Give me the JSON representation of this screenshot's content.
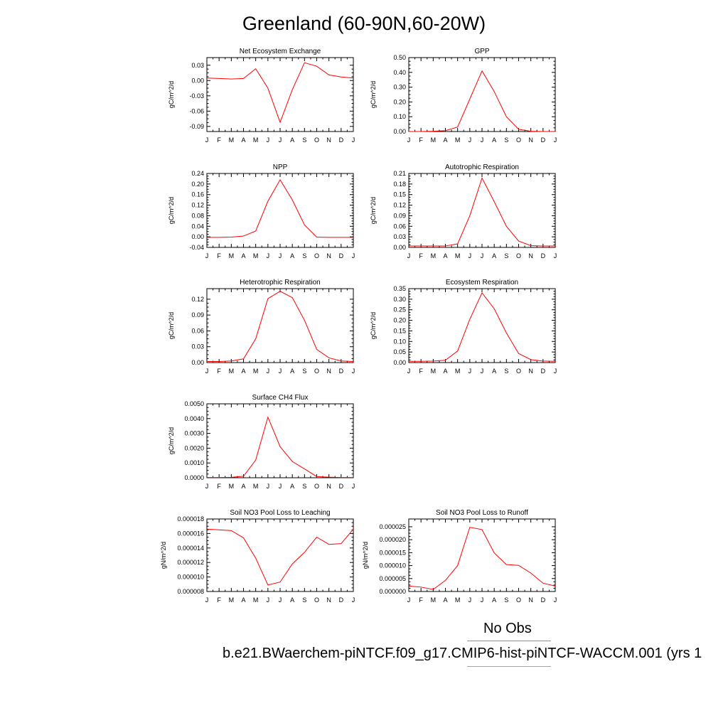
{
  "page": {
    "title": "Greenland (60-90N,60-20W)",
    "legend_obs_label": "No Obs",
    "legend_model_label": "b.e21.BWaerchem-piNTCF.f09_g17.CMIP6-hist-piNTCF-WACCM.001 (yrs 1",
    "colors": {
      "model": "#ff0000",
      "obs_line": "#8080ff",
      "model_line": "#ff8080"
    }
  },
  "chart_data": [
    {
      "type": "line",
      "title": "Net Ecosystem Exchange",
      "ylabel": "gC/m^2/d",
      "categories": [
        "J",
        "F",
        "M",
        "A",
        "M",
        "J",
        "J",
        "A",
        "S",
        "O",
        "N",
        "D",
        "J"
      ],
      "ylim": [
        -0.1,
        0.045
      ],
      "yticks": [
        0.03,
        0.0,
        -0.03,
        -0.06,
        -0.09
      ],
      "ytick_labels": [
        "0.03",
        "0.00",
        "-0.03",
        "-0.06",
        "-0.09"
      ],
      "values": [
        0.005,
        0.004,
        0.003,
        0.004,
        0.023,
        -0.015,
        -0.082,
        -0.018,
        0.035,
        0.028,
        0.011,
        0.007,
        0.005
      ]
    },
    {
      "type": "line",
      "title": "GPP",
      "ylabel": "gC/m^2/d",
      "categories": [
        "J",
        "F",
        "M",
        "A",
        "M",
        "J",
        "J",
        "A",
        "S",
        "O",
        "N",
        "D",
        "J"
      ],
      "ylim": [
        0,
        0.5
      ],
      "yticks": [
        0.0,
        0.1,
        0.2,
        0.3,
        0.4,
        0.5
      ],
      "ytick_labels": [
        "0.00",
        "0.10",
        "0.20",
        "0.30",
        "0.40",
        "0.50"
      ],
      "values": [
        0.0,
        0.0,
        0.002,
        0.006,
        0.03,
        0.22,
        0.41,
        0.27,
        0.1,
        0.015,
        0.002,
        0.0,
        0.0
      ]
    },
    {
      "type": "line",
      "title": "NPP",
      "ylabel": "gC/m^2/d",
      "categories": [
        "J",
        "F",
        "M",
        "A",
        "M",
        "J",
        "J",
        "A",
        "S",
        "O",
        "N",
        "D",
        "J"
      ],
      "ylim": [
        -0.04,
        0.24
      ],
      "yticks": [
        0.24,
        0.2,
        0.16,
        0.12,
        0.08,
        0.04,
        0.0,
        -0.04
      ],
      "ytick_labels": [
        "0.24",
        "0.20",
        "0.16",
        "0.12",
        "0.08",
        "0.04",
        "0.00",
        "-0.04"
      ],
      "values": [
        -0.002,
        -0.002,
        -0.001,
        0.003,
        0.022,
        0.135,
        0.216,
        0.14,
        0.045,
        -0.001,
        -0.002,
        -0.002,
        -0.002
      ]
    },
    {
      "type": "line",
      "title": "Autotrophic Respiration",
      "ylabel": "gC/m^2/d",
      "categories": [
        "J",
        "F",
        "M",
        "A",
        "M",
        "J",
        "J",
        "A",
        "S",
        "O",
        "N",
        "D",
        "J"
      ],
      "ylim": [
        0,
        0.21
      ],
      "yticks": [
        0.0,
        0.03,
        0.06,
        0.09,
        0.12,
        0.15,
        0.18,
        0.21
      ],
      "ytick_labels": [
        "0.00",
        "0.03",
        "0.06",
        "0.09",
        "0.12",
        "0.15",
        "0.18",
        "0.21"
      ],
      "values": [
        0.004,
        0.004,
        0.004,
        0.004,
        0.01,
        0.09,
        0.197,
        0.13,
        0.06,
        0.018,
        0.005,
        0.004,
        0.004
      ]
    },
    {
      "type": "line",
      "title": "Heterotrophic Respiration",
      "ylabel": "gC/m^2/d",
      "categories": [
        "J",
        "F",
        "M",
        "A",
        "M",
        "J",
        "J",
        "A",
        "S",
        "O",
        "N",
        "D",
        "J"
      ],
      "ylim": [
        0,
        0.14
      ],
      "yticks": [
        0.0,
        0.03,
        0.06,
        0.09,
        0.12
      ],
      "ytick_labels": [
        "0.00",
        "0.03",
        "0.06",
        "0.09",
        "0.12"
      ],
      "values": [
        0.002,
        0.002,
        0.003,
        0.007,
        0.045,
        0.121,
        0.135,
        0.123,
        0.08,
        0.025,
        0.009,
        0.003,
        0.002
      ]
    },
    {
      "type": "line",
      "title": "Ecosystem Respiration",
      "ylabel": "gC/m^2/d",
      "categories": [
        "J",
        "F",
        "M",
        "A",
        "M",
        "J",
        "J",
        "A",
        "S",
        "O",
        "N",
        "D",
        "J"
      ],
      "ylim": [
        0,
        0.35
      ],
      "yticks": [
        0.0,
        0.05,
        0.1,
        0.15,
        0.2,
        0.25,
        0.3,
        0.35
      ],
      "ytick_labels": [
        "0.00",
        "0.05",
        "0.10",
        "0.15",
        "0.20",
        "0.25",
        "0.30",
        "0.35"
      ],
      "values": [
        0.006,
        0.006,
        0.007,
        0.011,
        0.055,
        0.205,
        0.33,
        0.255,
        0.14,
        0.043,
        0.014,
        0.007,
        0.006
      ]
    },
    {
      "type": "line",
      "title": "Surface CH4 Flux",
      "ylabel": "gC/m^2/d",
      "categories": [
        "J",
        "F",
        "M",
        "A",
        "M",
        "J",
        "J",
        "A",
        "S",
        "O",
        "N",
        "D",
        "J"
      ],
      "ylim": [
        0,
        0.005
      ],
      "yticks": [
        0.0,
        0.001,
        0.002,
        0.003,
        0.004,
        0.005
      ],
      "ytick_labels": [
        "0.0000",
        "0.0010",
        "0.0020",
        "0.0030",
        "0.0040",
        "0.0050"
      ],
      "values": [
        2e-05,
        2e-05,
        3e-05,
        0.0001,
        0.0012,
        0.0041,
        0.0021,
        0.0011,
        0.0006,
        8e-05,
        4e-05,
        2e-05,
        2e-05
      ]
    },
    {
      "type": "line",
      "title": "Soil NO3 Pool Loss to Leaching",
      "ylabel": "gN/m^2/d",
      "categories": [
        "J",
        "F",
        "M",
        "A",
        "M",
        "J",
        "J",
        "A",
        "S",
        "O",
        "N",
        "D",
        "J"
      ],
      "ylim": [
        8e-06,
        1.8e-05
      ],
      "yticks": [
        8e-06,
        1e-05,
        1.2e-05,
        1.4e-05,
        1.6e-05,
        1.8e-05
      ],
      "ytick_labels": [
        "0.000008",
        "0.000010",
        "0.000012",
        "0.000014",
        "0.000016",
        "0.000018"
      ],
      "values": [
        1.66e-05,
        1.65e-05,
        1.64e-05,
        1.54e-05,
        1.26e-05,
        8.9e-06,
        9.3e-06,
        1.18e-05,
        1.34e-05,
        1.55e-05,
        1.45e-05,
        1.46e-05,
        1.66e-05
      ]
    },
    {
      "type": "line",
      "title": "Soil NO3 Pool Loss to Runoff",
      "ylabel": "gN/m^2/d",
      "categories": [
        "J",
        "F",
        "M",
        "A",
        "M",
        "J",
        "J",
        "A",
        "S",
        "O",
        "N",
        "D",
        "J"
      ],
      "ylim": [
        0,
        2.8e-05
      ],
      "yticks": [
        0.0,
        5e-06,
        1e-05,
        1.5e-05,
        2e-05,
        2.5e-05
      ],
      "ytick_labels": [
        "0.000000",
        "0.000005",
        "0.000010",
        "0.000015",
        "0.000020",
        "0.000025"
      ],
      "values": [
        2.1e-06,
        1.7e-06,
        8e-07,
        4.3e-06,
        1e-05,
        2.48e-05,
        2.39e-05,
        1.49e-05,
        1.04e-05,
        1.01e-05,
        7.1e-06,
        3.2e-06,
        2.1e-06
      ]
    }
  ]
}
